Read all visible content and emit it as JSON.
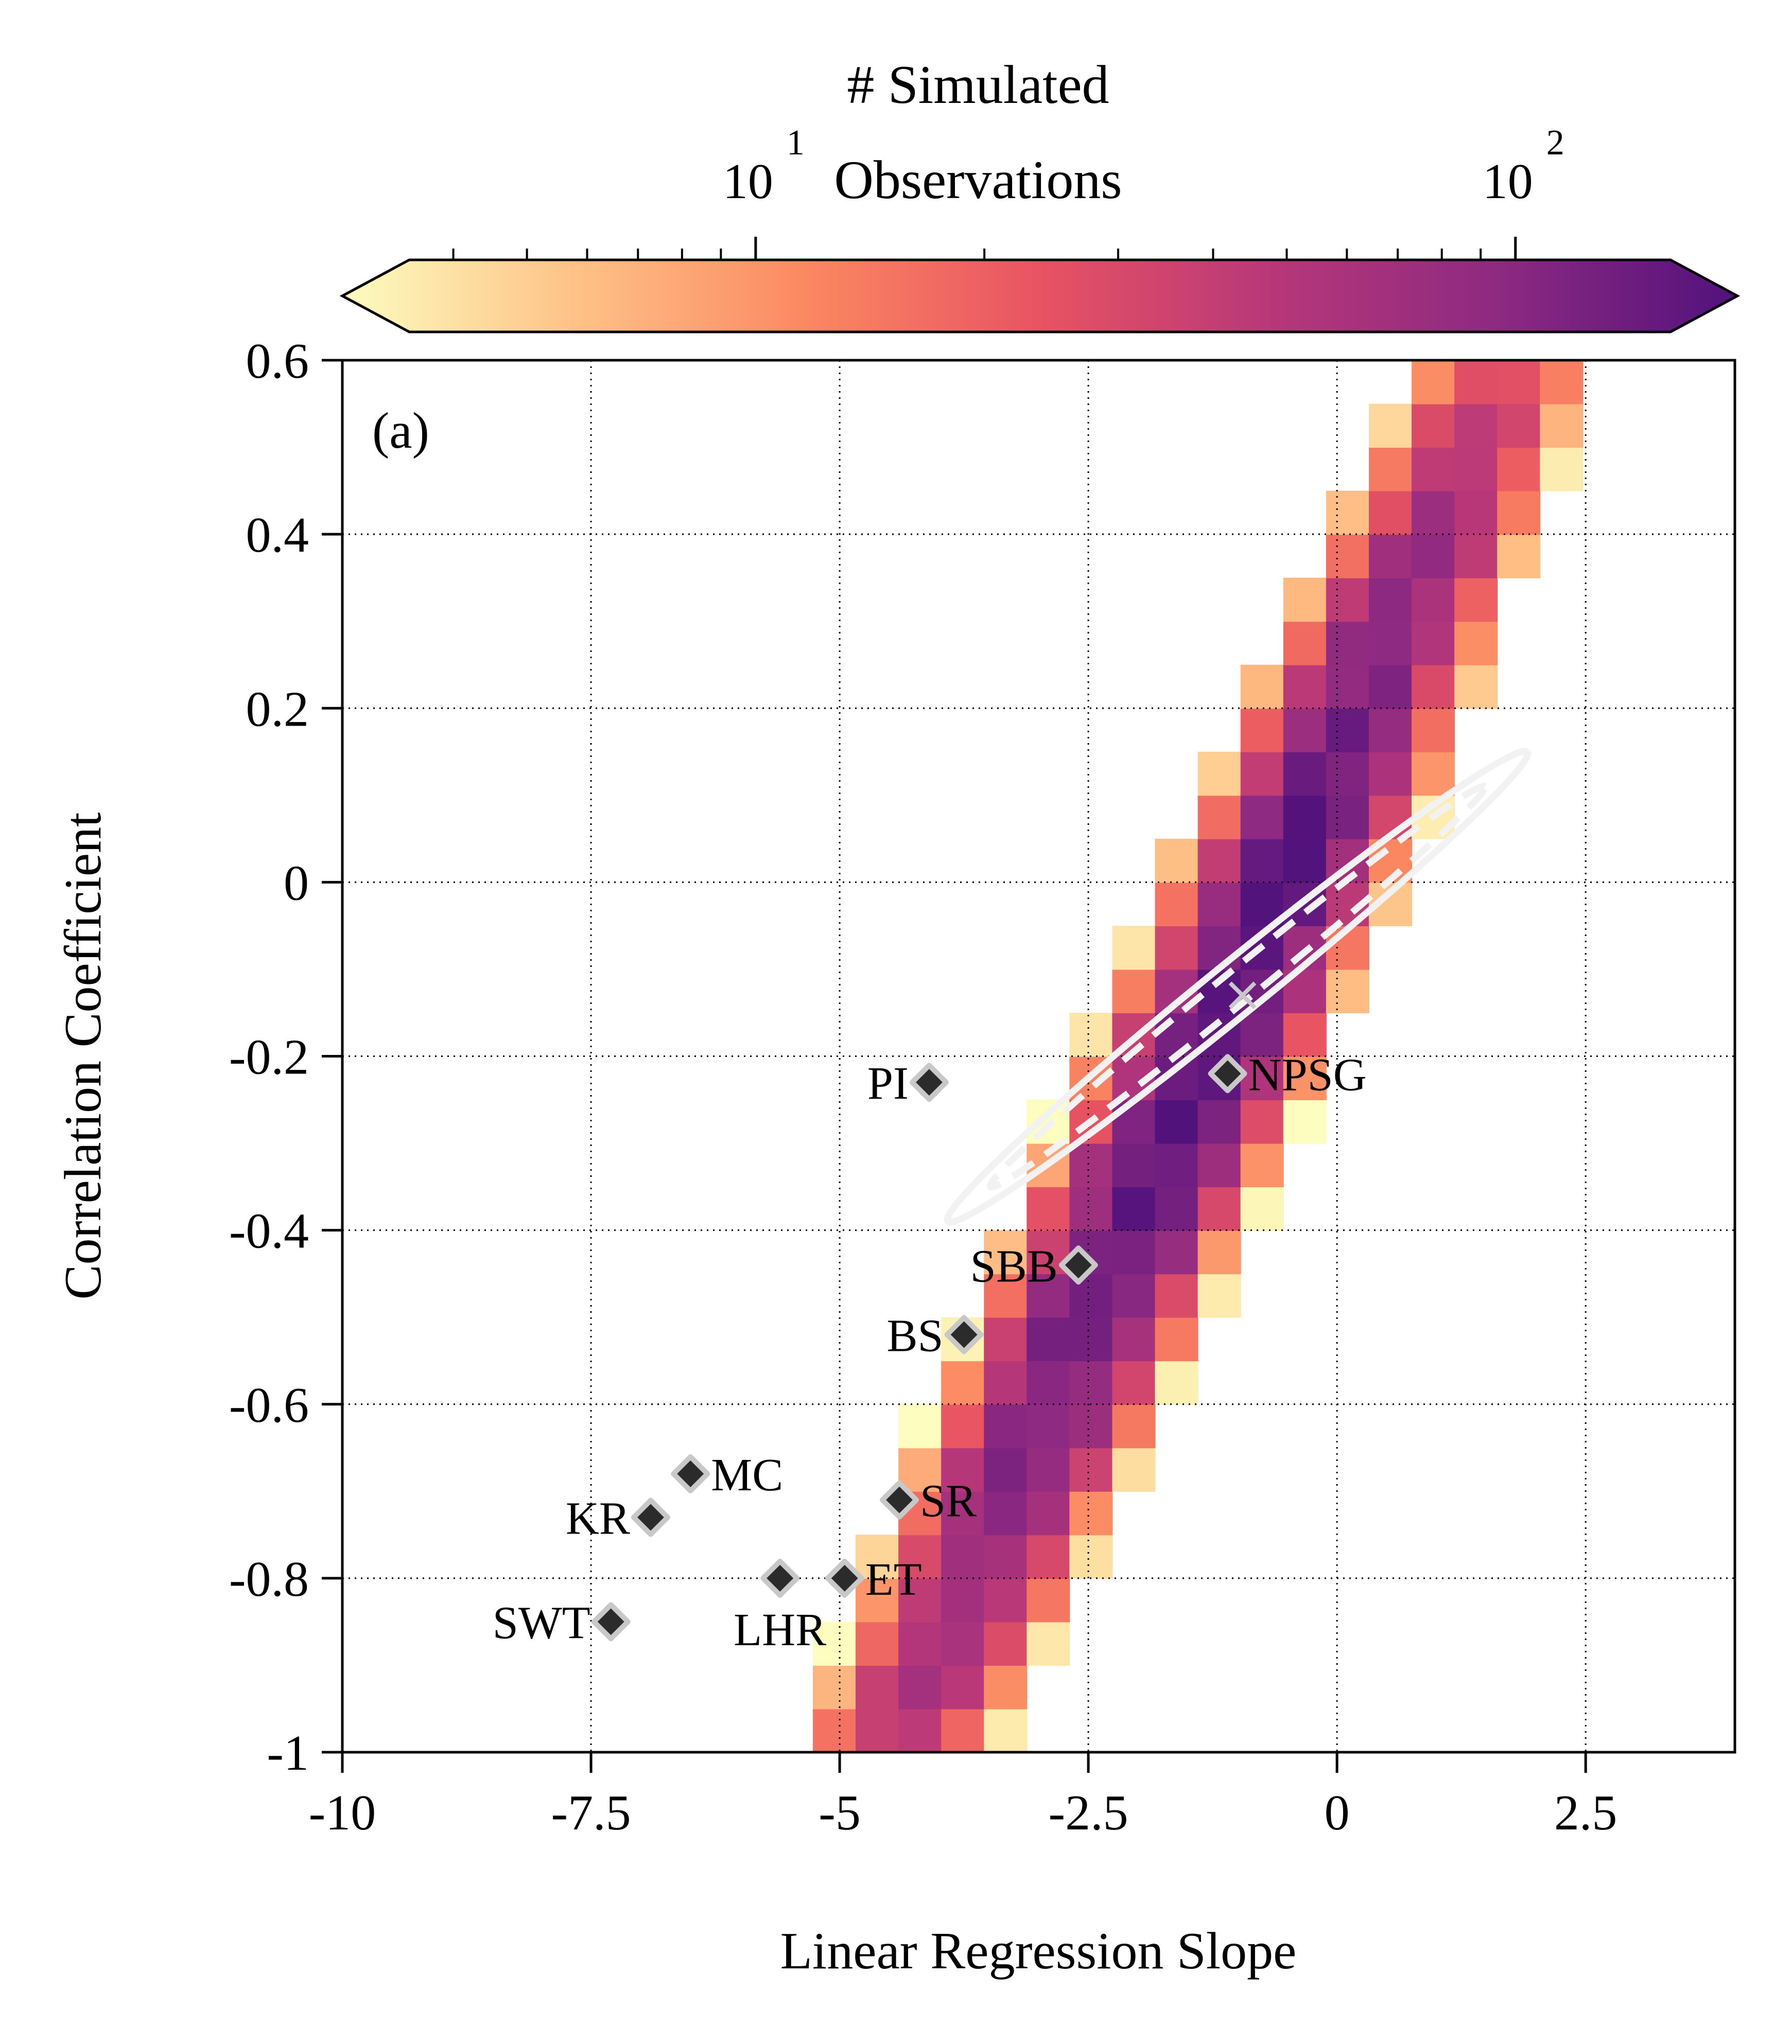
{
  "colors": {
    "cmap": [
      "#fcfdbf",
      "#fec287",
      "#fb8861",
      "#e85362",
      "#b73779",
      "#8c2981",
      "#51127c"
    ],
    "contour": "#f2f2f2",
    "grid": "#000000",
    "marker_fill": "#2b2b2b",
    "marker_edge": "#c8c8c8"
  },
  "colorbar": {
    "title_line1": "# Simulated",
    "title_line2": "Observations",
    "tick_labels": [
      {
        "base": "10",
        "exp": "1",
        "value": 10
      },
      {
        "base": "10",
        "exp": "2",
        "value": 100
      }
    ],
    "scale": "log",
    "range": [
      3.5,
      160
    ],
    "extend": "both"
  },
  "chart_data": {
    "type": "heatmap",
    "panel_label": "(a)",
    "xlabel": "Linear Regression Slope",
    "ylabel": "Correlation Coefficient",
    "xlim": [
      -10,
      4
    ],
    "ylim": [
      -1,
      0.6
    ],
    "xticks": [
      -10,
      -7.5,
      -5,
      -2.5,
      0,
      2.5
    ],
    "xtick_labels": [
      "-10",
      "-7.5",
      "-5",
      "-2.5",
      "0",
      "2.5"
    ],
    "yticks": [
      -1,
      -0.8,
      -0.6,
      -0.4,
      -0.2,
      0,
      0.2,
      0.4,
      0.6
    ],
    "ytick_labels": [
      "-1",
      "-0.8",
      "-0.6",
      "-0.4",
      "-0.2",
      "0",
      "0.2",
      "0.4",
      "0.6"
    ],
    "grid": true,
    "bin_width_x": 0.43,
    "bin_height_y": 0.05,
    "density": {
      "center": [
        -1.0,
        -0.12
      ],
      "major_direction": [
        2.45,
        0.6
      ],
      "major_sd": 1.0,
      "minor_sd": 0.06,
      "peak_count": 150,
      "min_count": 3
    },
    "contours": [
      {
        "style": "solid",
        "center": [
          -1.0,
          -0.12
        ],
        "semi_major": 3.75,
        "semi_minor": 0.26,
        "angle_deg": 39
      },
      {
        "style": "dashed",
        "center": [
          -1.0,
          -0.12
        ],
        "semi_major": 3.2,
        "semi_minor": 0.16,
        "angle_deg": 39
      }
    ],
    "mean_marker": {
      "symbol": "x",
      "x": -0.95,
      "y": -0.13
    },
    "sites": [
      {
        "label": "NPSG",
        "x": -1.1,
        "y": -0.22,
        "label_side": "right"
      },
      {
        "label": "PI",
        "x": -4.1,
        "y": -0.23,
        "label_side": "left"
      },
      {
        "label": "SBB",
        "x": -2.6,
        "y": -0.44,
        "label_side": "left"
      },
      {
        "label": "BS",
        "x": -3.75,
        "y": -0.52,
        "label_side": "left"
      },
      {
        "label": "MC",
        "x": -6.5,
        "y": -0.68,
        "label_side": "right"
      },
      {
        "label": "KR",
        "x": -6.9,
        "y": -0.73,
        "label_side": "left"
      },
      {
        "label": "SR",
        "x": -4.4,
        "y": -0.71,
        "label_side": "right"
      },
      {
        "label": "ET",
        "x": -4.95,
        "y": -0.8,
        "label_side": "right"
      },
      {
        "label": "LHR",
        "x": -5.6,
        "y": -0.8,
        "label_side": "below"
      },
      {
        "label": "SWT",
        "x": -7.3,
        "y": -0.85,
        "label_side": "left"
      }
    ]
  }
}
